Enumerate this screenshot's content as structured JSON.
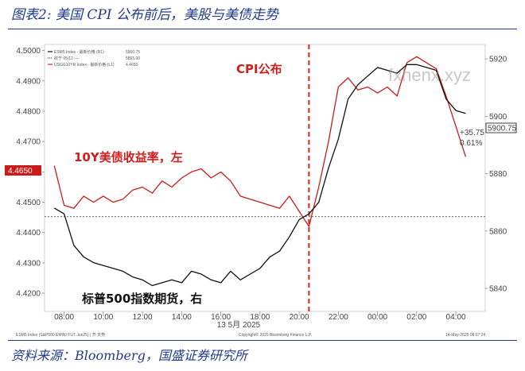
{
  "header": {
    "title": "图表2:  美国 CPI 公布前后，美股与美债走势"
  },
  "footer": {
    "source": "资料来源：Bloomberg，国盛证券研究所"
  },
  "watermark": "fxhenx.xyz",
  "chart_data": {
    "type": "line",
    "x": [
      "08:00",
      "10:00",
      "12:00",
      "14:00",
      "16:00",
      "18:00",
      "20:00",
      "22:00",
      "00:00",
      "02:00",
      "04:00"
    ],
    "xlabel": "13 5月 2025",
    "left_axis": {
      "ticks": [
        "4.4200",
        "4.4300",
        "4.4400",
        "4.4500",
        "4.4600",
        "4.4700",
        "4.4800",
        "4.4900",
        "4.5000"
      ],
      "range": [
        4.414,
        4.502
      ]
    },
    "right_axis": {
      "ticks": [
        "5840",
        "5860",
        "5880",
        "5900",
        "5920"
      ],
      "range": [
        5832,
        5925
      ]
    },
    "legend": {
      "entries": [
        {
          "name": "ESM5 Index - 最新价格 (R1)",
          "value": "5900.75",
          "color": "#111111"
        },
        {
          "name": "收于 05/12 ----",
          "value": "5865.00",
          "color": "#111111"
        },
        {
          "name": "USGG10YR Index - 最新价格 (L1)",
          "value": "4.4650",
          "color": "#cc1a1a"
        }
      ],
      "position": "top-left"
    },
    "annotations": {
      "cpi": "CPI公布",
      "bond": "10Y美债收益率，左",
      "equity": "标普500指数期货，右",
      "change": "+35.75",
      "change_pct": "0.61%",
      "last_right": "5900.75",
      "last_left": "4.4650",
      "bottom_left": "ESM5 Index (S&P500 EMINI FUT Jun25) | 芥 天势",
      "bottom_mid": "Copyright© 2025 Bloomberg Finance L.P.",
      "bottom_right": "14-May-2025 08:07:24"
    },
    "reference_line": {
      "axis": "right",
      "value": 5865.0
    },
    "cpi_time": "20:30",
    "series": [
      {
        "name": "USGG10YR Index",
        "axis": "left",
        "color": "#cc1a1a",
        "x": [
          "07:30",
          "08:00",
          "08:30",
          "09:00",
          "09:30",
          "10:00",
          "10:30",
          "11:00",
          "11:30",
          "12:00",
          "12:30",
          "13:00",
          "13:30",
          "14:00",
          "14:30",
          "15:00",
          "15:30",
          "16:00",
          "16:30",
          "17:00",
          "17:30",
          "18:00",
          "18:30",
          "19:00",
          "19:30",
          "20:00",
          "20:30",
          "21:00",
          "21:30",
          "22:00",
          "22:30",
          "23:00",
          "23:30",
          "00:00",
          "00:30",
          "01:00",
          "01:30",
          "02:00",
          "02:30",
          "03:00",
          "03:30",
          "04:00",
          "04:30"
        ],
        "values": [
          4.462,
          4.449,
          4.448,
          4.452,
          4.45,
          4.452,
          4.45,
          4.451,
          4.454,
          4.455,
          4.453,
          4.457,
          4.455,
          4.458,
          4.46,
          4.461,
          4.458,
          4.46,
          4.457,
          4.452,
          4.451,
          4.45,
          4.449,
          4.448,
          4.452,
          4.447,
          4.442,
          4.455,
          4.47,
          4.488,
          4.491,
          4.487,
          4.488,
          4.486,
          4.488,
          4.485,
          4.496,
          4.498,
          4.496,
          4.494,
          4.485,
          4.475,
          4.465
        ]
      },
      {
        "name": "ESM5 Index",
        "axis": "right",
        "color": "#111111",
        "x": [
          "07:30",
          "08:00",
          "08:30",
          "09:00",
          "09:30",
          "10:00",
          "10:30",
          "11:00",
          "11:30",
          "12:00",
          "12:30",
          "13:00",
          "13:30",
          "14:00",
          "14:30",
          "15:00",
          "15:30",
          "16:00",
          "16:30",
          "17:00",
          "17:30",
          "18:00",
          "18:30",
          "19:00",
          "19:30",
          "20:00",
          "20:30",
          "21:00",
          "21:30",
          "22:00",
          "22:30",
          "23:00",
          "23:30",
          "00:00",
          "00:30",
          "01:00",
          "01:30",
          "02:00",
          "02:30",
          "03:00",
          "03:30",
          "04:00",
          "04:30"
        ],
        "values": [
          5868,
          5866,
          5855,
          5851,
          5849,
          5848,
          5847,
          5846,
          5844,
          5843,
          5841,
          5842,
          5843,
          5842,
          5846,
          5845,
          5843,
          5842,
          5846,
          5843,
          5845,
          5847,
          5851,
          5853,
          5858,
          5864,
          5866,
          5870,
          5882,
          5892,
          5906,
          5911,
          5914,
          5917,
          5916,
          5915,
          5918,
          5918,
          5917,
          5916,
          5906,
          5902,
          5901
        ]
      }
    ]
  }
}
